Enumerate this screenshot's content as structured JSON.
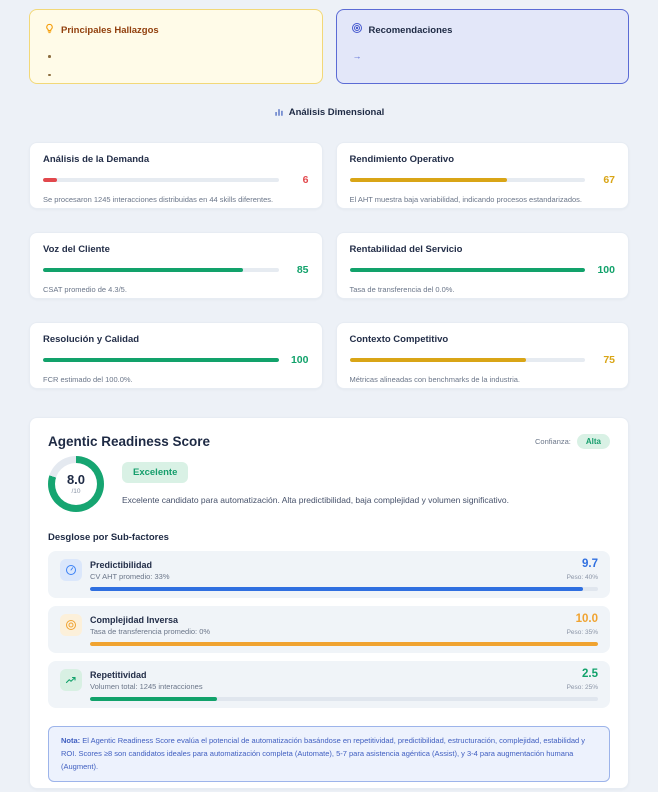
{
  "findings": {
    "title": "Principales Hallazgos",
    "bullets": [
      "",
      ""
    ]
  },
  "recommendations": {
    "title": "Recomendaciones",
    "arrow": "→"
  },
  "section_header": {
    "title": "Análisis Dimensional"
  },
  "dimension_cards": [
    {
      "title": "Análisis de la Demanda",
      "score": "6",
      "pct": 6,
      "color": "#e2484d",
      "description": "Se procesaron 1245 interacciones distribuidas en 44 skills diferentes."
    },
    {
      "title": "Rendimiento Operativo",
      "score": "67",
      "pct": 67,
      "color": "#d9a516",
      "description": "El AHT muestra baja variabilidad, indicando procesos estandarizados."
    },
    {
      "title": "Voz del Cliente",
      "score": "85",
      "pct": 85,
      "color": "#12a26b",
      "description": "CSAT promedio de 4.3/5."
    },
    {
      "title": "Rentabilidad del Servicio",
      "score": "100",
      "pct": 100,
      "color": "#12a26b",
      "description": "Tasa de transferencia del 0.0%."
    },
    {
      "title": "Resolución y Calidad",
      "score": "100",
      "pct": 100,
      "color": "#12a26b",
      "description": "FCR estimado del 100.0%."
    },
    {
      "title": "Contexto Competitivo",
      "score": "75",
      "pct": 75,
      "color": "#d9a516",
      "description": "Métricas alineadas con benchmarks de la industria."
    }
  ],
  "agentic": {
    "title": "Agentic Readiness Score",
    "confidence_label": "Confianza:",
    "confidence_value": "Alta",
    "score": "8.0",
    "score_max": "/10",
    "gauge": {
      "pct": 80,
      "color": "#16a571"
    },
    "grade_badge": "Excelente",
    "badge_colors": {
      "bg": "#d9f1e5",
      "text": "#159e6c"
    },
    "description": "Excelente candidato para automatización. Alta predictibilidad, baja complejidad y volumen significativo.",
    "subfactors_title": "Desglose por Sub-factores",
    "subfactors": [
      {
        "name": "Predictibilidad",
        "detail": "CV AHT promedio: 33%",
        "value": "9.7",
        "weight": "Peso: 40%",
        "pct": 97,
        "color": "#2f6fe0"
      },
      {
        "name": "Complejidad Inversa",
        "detail": "Tasa de transferencia promedio: 0%",
        "value": "10.0",
        "weight": "Peso: 35%",
        "pct": 100,
        "color": "#f0a330"
      },
      {
        "name": "Repetitividad",
        "detail": "Volumen total: 1245 interacciones",
        "value": "2.5",
        "weight": "Peso: 25%",
        "pct": 25,
        "color": "#12a26b"
      }
    ],
    "note_label": "Nota:",
    "note_text": " El Agentic Readiness Score evalúa el potencial de automatización basándose en repetitividad, predictibilidad, estructuración, complejidad, estabilidad y ROI. Scores ≥8 son candidatos ideales para automatización completa (Automate), 5-7 para asistencia agéntica (Assist), y 3-4 para augmentación humana (Augment)."
  }
}
